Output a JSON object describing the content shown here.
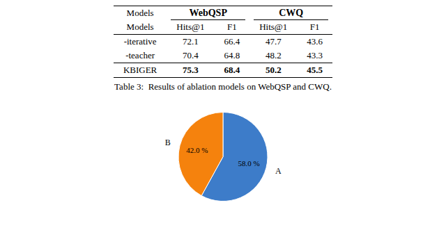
{
  "chart_data": [
    {
      "type": "table",
      "header": "Models",
      "column_groups": [
        "WebQSP",
        "CWQ"
      ],
      "columns": [
        "Models",
        "Hits@1",
        "F1",
        "Hits@1",
        "F1"
      ],
      "rows": [
        {
          "name": "-iterative",
          "values": [
            72.1,
            66.4,
            47.7,
            43.6
          ]
        },
        {
          "name": "-teacher",
          "values": [
            70.4,
            64.8,
            48.2,
            43.3
          ]
        },
        {
          "name": "KBIGER",
          "values": [
            75.3,
            68.4,
            50.2,
            45.5
          ]
        }
      ],
      "annotations": [
        "Table 3:  Results of ablation models on WebQSP and CWQ."
      ]
    },
    {
      "type": "pie",
      "categories": [
        "A",
        "B"
      ],
      "values": [
        58.0,
        42.0
      ],
      "value_labels": [
        "58.0 %",
        "42.0 %"
      ],
      "colors": [
        "#3d7cc9",
        "#f5820d"
      ],
      "data_labels": true
    }
  ]
}
